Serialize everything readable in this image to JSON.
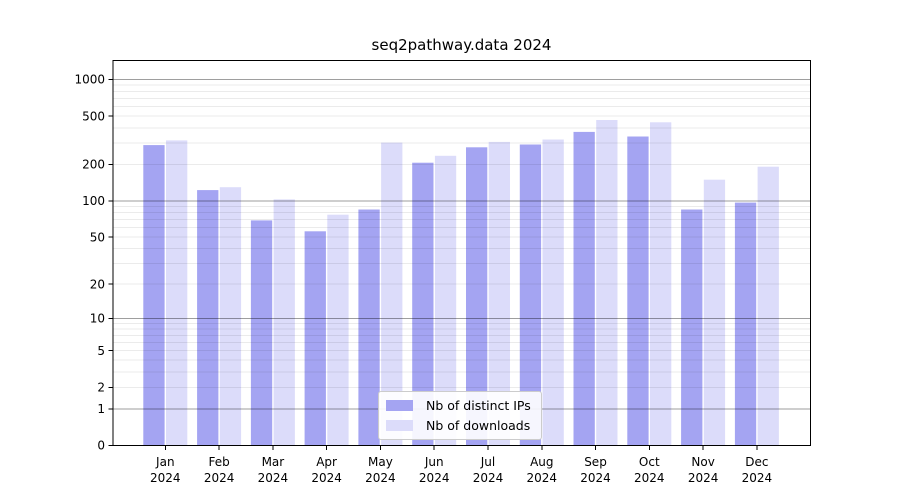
{
  "title": "seq2pathway.data 2024",
  "legend": {
    "position": "lower center",
    "items": [
      {
        "label": "Nb of distinct IPs",
        "color": "#a4a4f2"
      },
      {
        "label": "Nb of downloads",
        "color": "#dcdcfa"
      }
    ]
  },
  "chart_data": {
    "type": "bar",
    "title": "seq2pathway.data 2024",
    "categories": [
      "Jan",
      "Feb",
      "Mar",
      "Apr",
      "May",
      "Jun",
      "Jul",
      "Aug",
      "Sep",
      "Oct",
      "Nov",
      "Dec"
    ],
    "year_label": "2024",
    "series": [
      {
        "name": "Nb of distinct IPs",
        "color": "#a4a4f2",
        "values": [
          289,
          123,
          69,
          56,
          85,
          207,
          277,
          292,
          371,
          340,
          85,
          97
        ]
      },
      {
        "name": "Nb of downloads",
        "color": "#dcdcfa",
        "values": [
          316,
          130,
          103,
          77,
          303,
          236,
          307,
          321,
          465,
          445,
          150,
          192
        ]
      }
    ],
    "xlabel": "",
    "ylabel": "",
    "yscale": "log1p",
    "ytick_labels": [
      "0",
      "1",
      "2",
      "5",
      "10",
      "20",
      "50",
      "100",
      "200",
      "500",
      "1000"
    ],
    "yticks": [
      0,
      1,
      2,
      5,
      10,
      20,
      50,
      100,
      200,
      500,
      1000
    ],
    "ylim": [
      0,
      1430
    ],
    "grid": "horizontal",
    "grid_major_at": [
      1,
      10,
      100,
      1000
    ],
    "legend_position": "lower center"
  }
}
